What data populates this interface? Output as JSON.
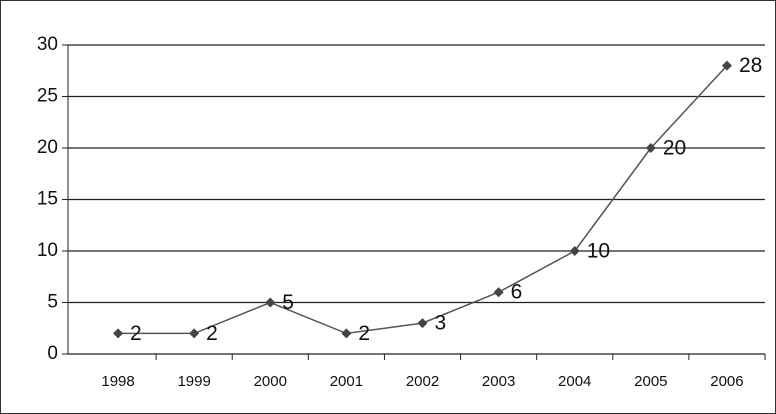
{
  "chart_data": {
    "type": "line",
    "categories": [
      "1998",
      "1999",
      "2000",
      "2001",
      "2002",
      "2003",
      "2004",
      "2005",
      "2006"
    ],
    "values": [
      2,
      2,
      5,
      2,
      3,
      6,
      10,
      20,
      28
    ],
    "color": "#444444",
    "ylim": [
      0,
      30
    ],
    "yticks": [
      0,
      5,
      10,
      15,
      20,
      25,
      30
    ],
    "grid": true
  }
}
